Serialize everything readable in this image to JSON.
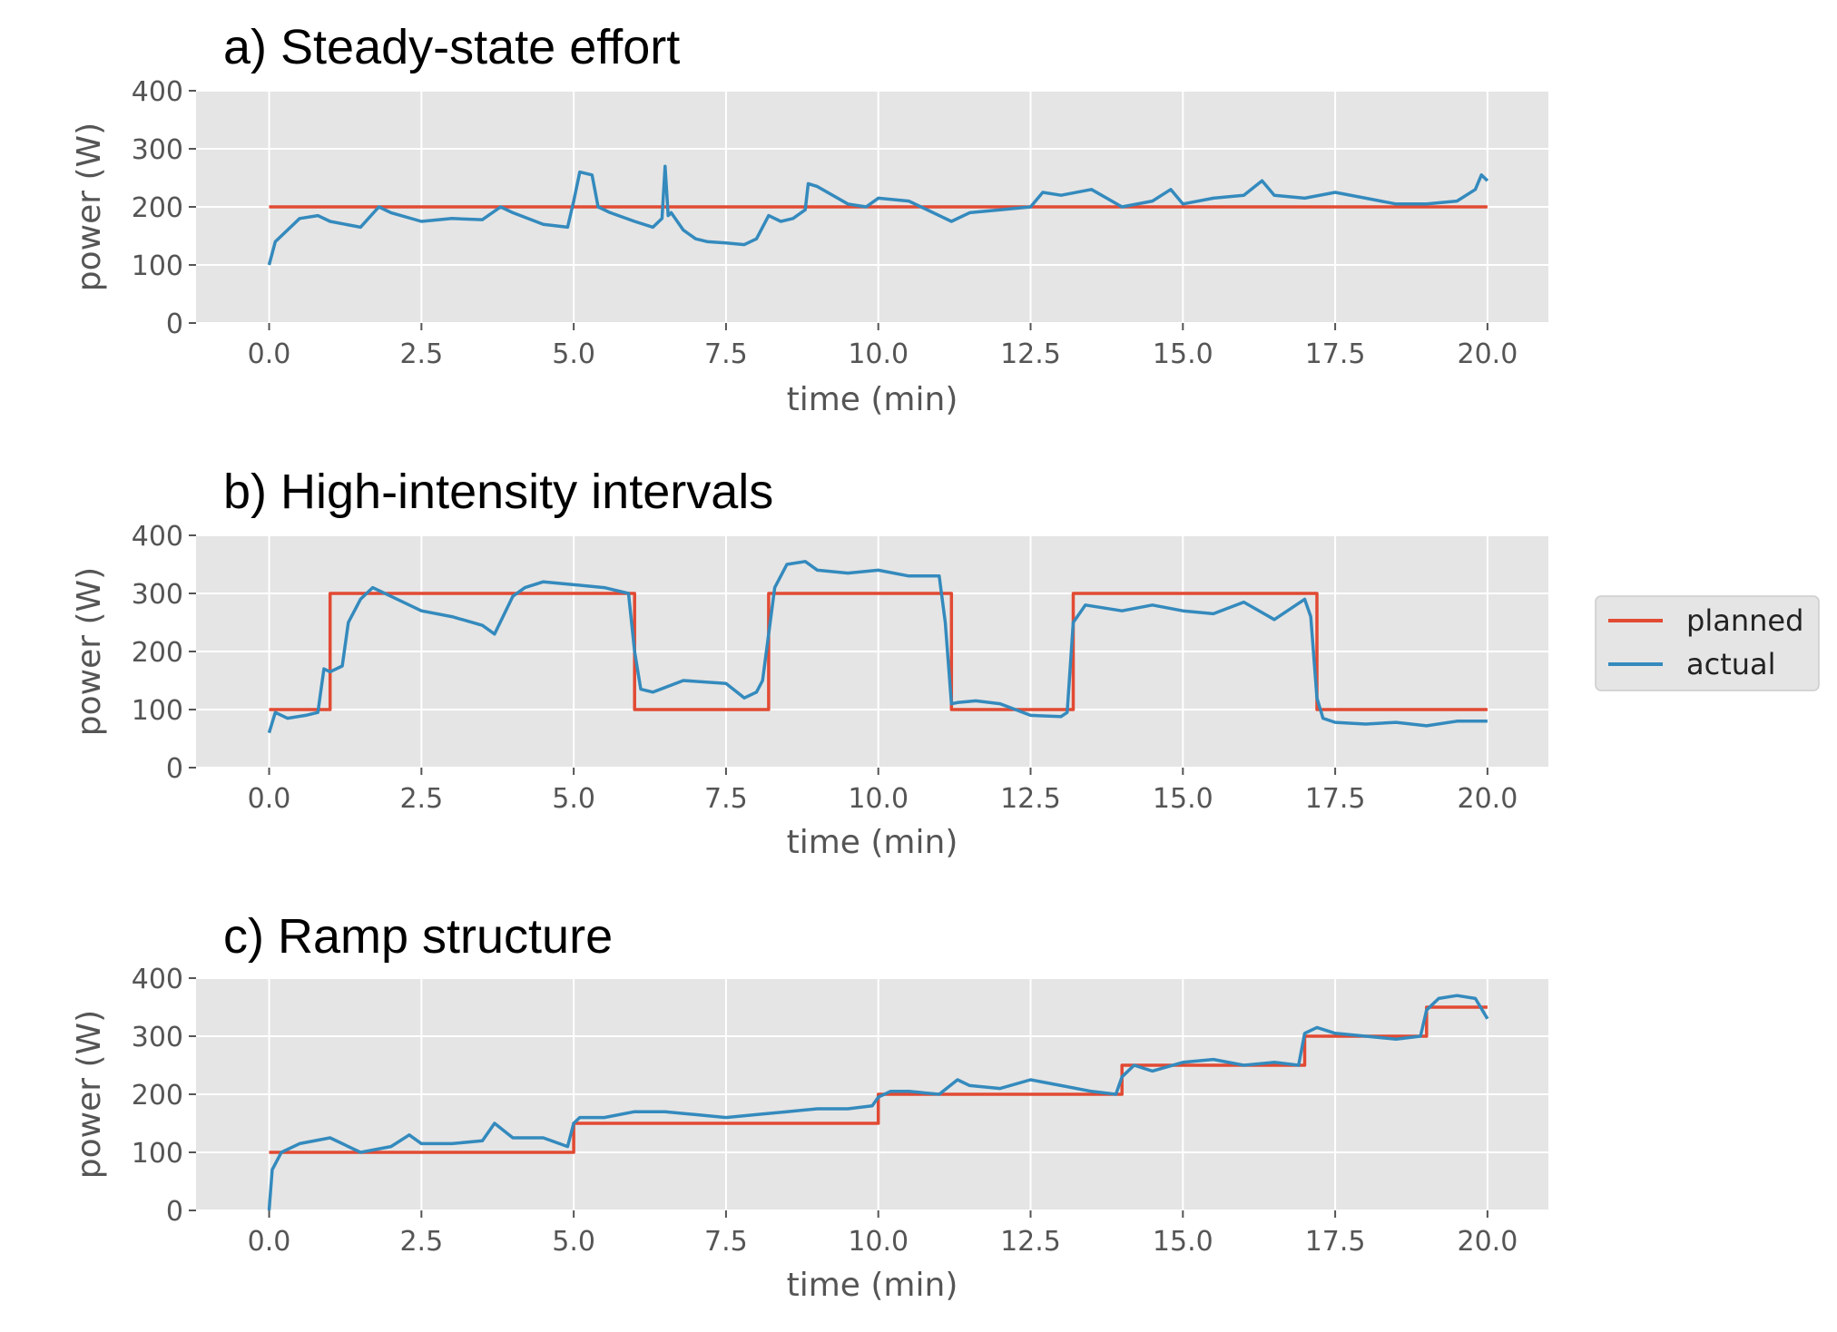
{
  "chart_data": [
    {
      "type": "line",
      "title": "a) Steady-state effort",
      "xlabel": "time (min)",
      "ylabel": "power (W)",
      "xlim": [
        -1.2,
        21.0
      ],
      "ylim": [
        0,
        400
      ],
      "xticks": [
        0.0,
        2.5,
        5.0,
        7.5,
        10.0,
        12.5,
        15.0,
        17.5,
        20.0
      ],
      "xtick_labels": [
        "0.0",
        "2.5",
        "5.0",
        "7.5",
        "10.0",
        "12.5",
        "15.0",
        "17.5",
        "20.0"
      ],
      "yticks": [
        0,
        100,
        200,
        300,
        400
      ],
      "ytick_labels": [
        "0",
        "100",
        "200",
        "300",
        "400"
      ],
      "grid": true,
      "series": [
        {
          "name": "planned",
          "color": "#e24a33",
          "step": true,
          "x": [
            0,
            20
          ],
          "y": [
            200,
            200
          ]
        },
        {
          "name": "actual",
          "color": "#348abd",
          "x": [
            0,
            0.1,
            0.3,
            0.5,
            0.8,
            1.0,
            1.5,
            1.8,
            2.0,
            2.5,
            3.0,
            3.5,
            3.8,
            4.0,
            4.5,
            4.9,
            5.0,
            5.1,
            5.3,
            5.4,
            5.6,
            6.0,
            6.3,
            6.45,
            6.5,
            6.55,
            6.6,
            6.8,
            7.0,
            7.2,
            7.5,
            7.8,
            8.0,
            8.2,
            8.4,
            8.6,
            8.8,
            8.85,
            9.0,
            9.5,
            9.8,
            10.0,
            10.5,
            11.0,
            11.2,
            11.5,
            12.0,
            12.5,
            12.7,
            13.0,
            13.5,
            14.0,
            14.5,
            14.8,
            15.0,
            15.5,
            16.0,
            16.3,
            16.5,
            17.0,
            17.5,
            18.0,
            18.5,
            19.0,
            19.5,
            19.8,
            19.9,
            20.0
          ],
          "y": [
            100,
            140,
            160,
            180,
            185,
            175,
            165,
            200,
            190,
            175,
            180,
            178,
            200,
            190,
            170,
            165,
            210,
            260,
            255,
            200,
            190,
            175,
            165,
            180,
            270,
            185,
            190,
            160,
            145,
            140,
            138,
            135,
            145,
            185,
            175,
            180,
            195,
            240,
            235,
            205,
            200,
            215,
            210,
            185,
            175,
            190,
            195,
            200,
            225,
            220,
            230,
            200,
            210,
            230,
            205,
            215,
            220,
            245,
            220,
            215,
            225,
            215,
            205,
            205,
            210,
            230,
            255,
            245
          ]
        }
      ]
    },
    {
      "type": "line",
      "title": "b) High-intensity intervals",
      "xlabel": "time (min)",
      "ylabel": "power (W)",
      "xlim": [
        -1.2,
        21.0
      ],
      "ylim": [
        0,
        400
      ],
      "xticks": [
        0.0,
        2.5,
        5.0,
        7.5,
        10.0,
        12.5,
        15.0,
        17.5,
        20.0
      ],
      "xtick_labels": [
        "0.0",
        "2.5",
        "5.0",
        "7.5",
        "10.0",
        "12.5",
        "15.0",
        "17.5",
        "20.0"
      ],
      "yticks": [
        0,
        100,
        200,
        300,
        400
      ],
      "ytick_labels": [
        "0",
        "100",
        "200",
        "300",
        "400"
      ],
      "grid": true,
      "series": [
        {
          "name": "planned",
          "color": "#e24a33",
          "step": true,
          "x": [
            0,
            1,
            1,
            6,
            6,
            8.2,
            8.2,
            11.2,
            11.2,
            13.2,
            13.2,
            17.2,
            17.2,
            20
          ],
          "y": [
            100,
            100,
            300,
            300,
            100,
            100,
            300,
            300,
            100,
            100,
            300,
            300,
            100,
            100
          ]
        },
        {
          "name": "actual",
          "color": "#348abd",
          "x": [
            0,
            0.1,
            0.3,
            0.6,
            0.8,
            0.9,
            1.0,
            1.2,
            1.3,
            1.5,
            1.7,
            2.0,
            2.5,
            3.0,
            3.5,
            3.7,
            4.0,
            4.2,
            4.5,
            5.0,
            5.5,
            5.9,
            6.0,
            6.1,
            6.3,
            6.8,
            7.5,
            7.8,
            8.0,
            8.1,
            8.3,
            8.5,
            8.8,
            9.0,
            9.5,
            10.0,
            10.5,
            11.0,
            11.1,
            11.2,
            11.3,
            11.6,
            12.0,
            12.5,
            13.0,
            13.1,
            13.2,
            13.4,
            14.0,
            14.5,
            15.0,
            15.5,
            16.0,
            16.5,
            17.0,
            17.1,
            17.2,
            17.3,
            17.5,
            18.0,
            18.5,
            19.0,
            19.5,
            20.0
          ],
          "y": [
            60,
            95,
            85,
            90,
            95,
            170,
            165,
            175,
            250,
            290,
            310,
            295,
            270,
            260,
            245,
            230,
            295,
            310,
            320,
            315,
            310,
            300,
            200,
            135,
            130,
            150,
            145,
            120,
            130,
            150,
            310,
            350,
            355,
            340,
            335,
            340,
            330,
            330,
            250,
            110,
            112,
            115,
            110,
            90,
            88,
            95,
            250,
            280,
            270,
            280,
            270,
            265,
            285,
            255,
            290,
            260,
            120,
            85,
            78,
            75,
            78,
            72,
            80,
            80
          ]
        }
      ]
    },
    {
      "type": "line",
      "title": "c) Ramp structure",
      "xlabel": "time (min)",
      "ylabel": "power (W)",
      "xlim": [
        -1.2,
        21.0
      ],
      "ylim": [
        0,
        400
      ],
      "xticks": [
        0.0,
        2.5,
        5.0,
        7.5,
        10.0,
        12.5,
        15.0,
        17.5,
        20.0
      ],
      "xtick_labels": [
        "0.0",
        "2.5",
        "5.0",
        "7.5",
        "10.0",
        "12.5",
        "15.0",
        "17.5",
        "20.0"
      ],
      "yticks": [
        0,
        100,
        200,
        300,
        400
      ],
      "ytick_labels": [
        "0",
        "100",
        "200",
        "300",
        "400"
      ],
      "grid": true,
      "series": [
        {
          "name": "planned",
          "color": "#e24a33",
          "step": true,
          "x": [
            0,
            5,
            5,
            10,
            10,
            14,
            14,
            17,
            17,
            19,
            19,
            20
          ],
          "y": [
            100,
            100,
            150,
            150,
            200,
            200,
            250,
            250,
            300,
            300,
            350,
            350
          ]
        },
        {
          "name": "actual",
          "color": "#348abd",
          "x": [
            0,
            0.05,
            0.2,
            0.5,
            1.0,
            1.5,
            2.0,
            2.3,
            2.5,
            3.0,
            3.5,
            3.7,
            4.0,
            4.5,
            4.9,
            5.0,
            5.1,
            5.5,
            6.0,
            6.5,
            7.0,
            7.5,
            8.0,
            8.5,
            9.0,
            9.5,
            9.9,
            10.0,
            10.2,
            10.5,
            11.0,
            11.3,
            11.5,
            12.0,
            12.5,
            13.0,
            13.5,
            13.9,
            14.0,
            14.2,
            14.5,
            15.0,
            15.5,
            16.0,
            16.5,
            16.9,
            17.0,
            17.2,
            17.5,
            18.0,
            18.5,
            18.9,
            19.0,
            19.2,
            19.5,
            19.8,
            20.0
          ],
          "y": [
            0,
            70,
            100,
            115,
            125,
            100,
            110,
            130,
            115,
            115,
            120,
            150,
            125,
            125,
            110,
            150,
            160,
            160,
            170,
            170,
            165,
            160,
            165,
            170,
            175,
            175,
            180,
            195,
            205,
            205,
            200,
            225,
            215,
            210,
            225,
            215,
            205,
            200,
            230,
            250,
            240,
            255,
            260,
            250,
            255,
            250,
            305,
            315,
            305,
            300,
            295,
            300,
            345,
            365,
            370,
            365,
            330
          ]
        }
      ]
    }
  ],
  "legend": {
    "entries": [
      {
        "label": "planned",
        "color": "#e24a33"
      },
      {
        "label": "actual",
        "color": "#348abd"
      }
    ]
  }
}
